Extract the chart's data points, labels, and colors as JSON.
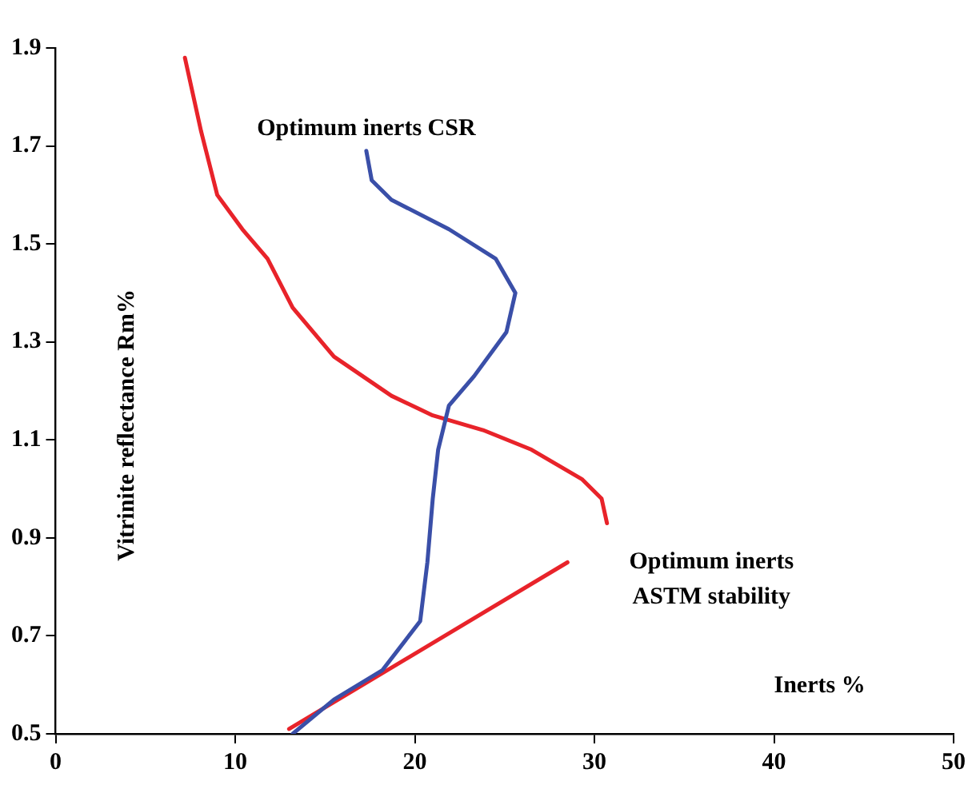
{
  "chart_data": {
    "type": "line",
    "xlabel": "Inerts %",
    "ylabel": "Vitrinite reflectance Rm%",
    "xlim": [
      0,
      50
    ],
    "xticks": [
      0,
      10,
      20,
      30,
      40,
      50
    ],
    "ylim": [
      0.5,
      1.9
    ],
    "yticks": [
      0.5,
      0.7,
      0.9,
      1.1,
      1.3,
      1.5,
      1.7,
      1.9
    ],
    "grid": false,
    "legend": false,
    "marker": "none",
    "line_style": "solid",
    "series": [
      {
        "name": "Optimum inerts CSR",
        "color": "#3a4fa8",
        "x": [
          17.3,
          17.6,
          18.7,
          21.9,
          24.5,
          25.6,
          25.1,
          23.3,
          21.9,
          21.3,
          21.0,
          20.7,
          20.3,
          18.2,
          15.5,
          13.2
        ],
        "values": [
          1.69,
          1.63,
          1.59,
          1.53,
          1.47,
          1.4,
          1.32,
          1.23,
          1.17,
          1.08,
          0.98,
          0.85,
          0.73,
          0.63,
          0.57,
          0.5
        ]
      },
      {
        "name": "Optimum inerts ASTM stability",
        "color": "#e8232a",
        "x": [
          7.2,
          8.1,
          9.0,
          10.4,
          11.8,
          13.2,
          15.5,
          18.7,
          21.0,
          23.8,
          26.5,
          29.3,
          30.4,
          30.7,
          null,
          13.0,
          28.5
        ],
        "values": [
          1.88,
          1.73,
          1.6,
          1.53,
          1.47,
          1.37,
          1.27,
          1.19,
          1.15,
          1.12,
          1.08,
          1.02,
          0.98,
          0.93,
          null,
          0.51,
          0.85
        ]
      }
    ]
  }
}
